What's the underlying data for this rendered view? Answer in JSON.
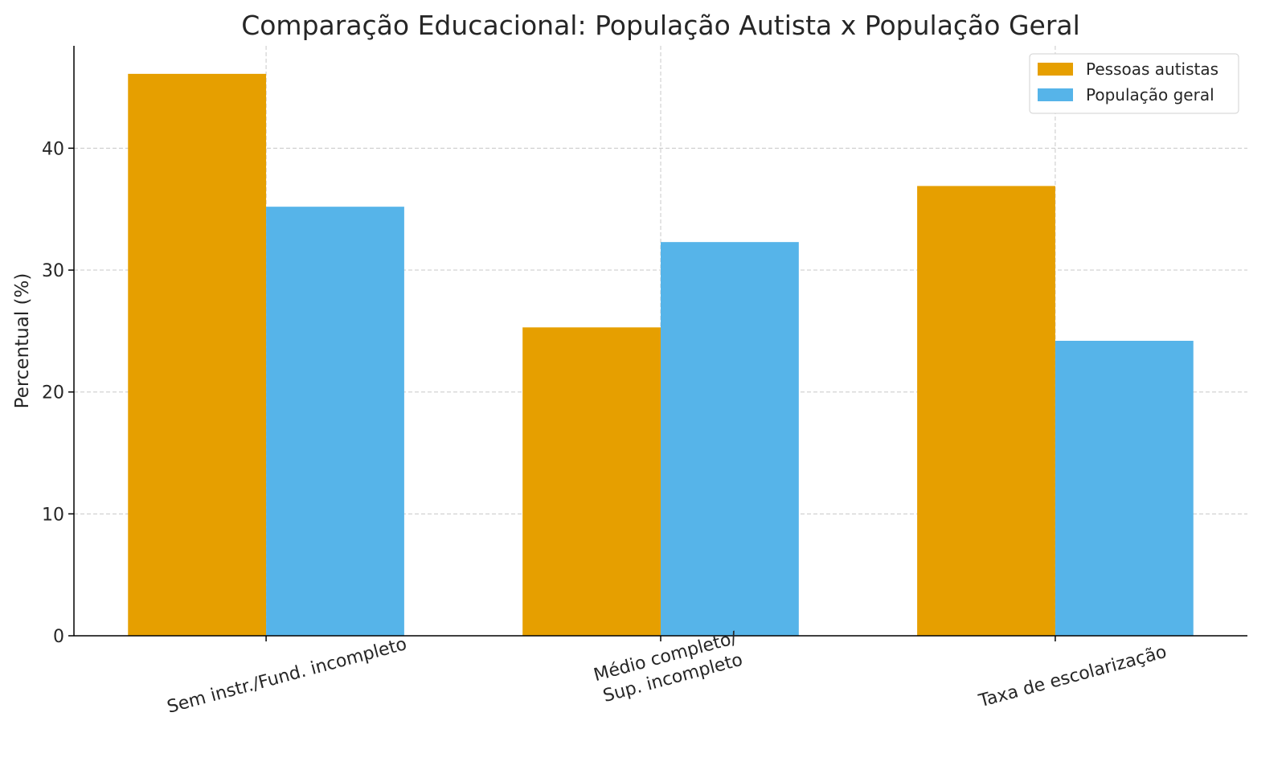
{
  "chart_data": {
    "type": "bar",
    "title": "Comparação Educacional: População Autista x População Geral",
    "xlabel": "",
    "ylabel": "Percentual (%)",
    "categories": [
      "Sem instr./Fund. incompleto",
      "Médio completo/\nSup. incompleto",
      "Taxa de escolarização"
    ],
    "series": [
      {
        "name": "Pessoas autistas",
        "values": [
          46.1,
          25.3,
          36.9
        ],
        "color": "#E69F00"
      },
      {
        "name": "População geral",
        "values": [
          35.2,
          32.3,
          24.2
        ],
        "color": "#56B4E9"
      }
    ],
    "ylim": [
      0,
      48.4
    ],
    "yticks": [
      0,
      10,
      20,
      30,
      40
    ],
    "grid": true,
    "legend_position": "top-right"
  }
}
